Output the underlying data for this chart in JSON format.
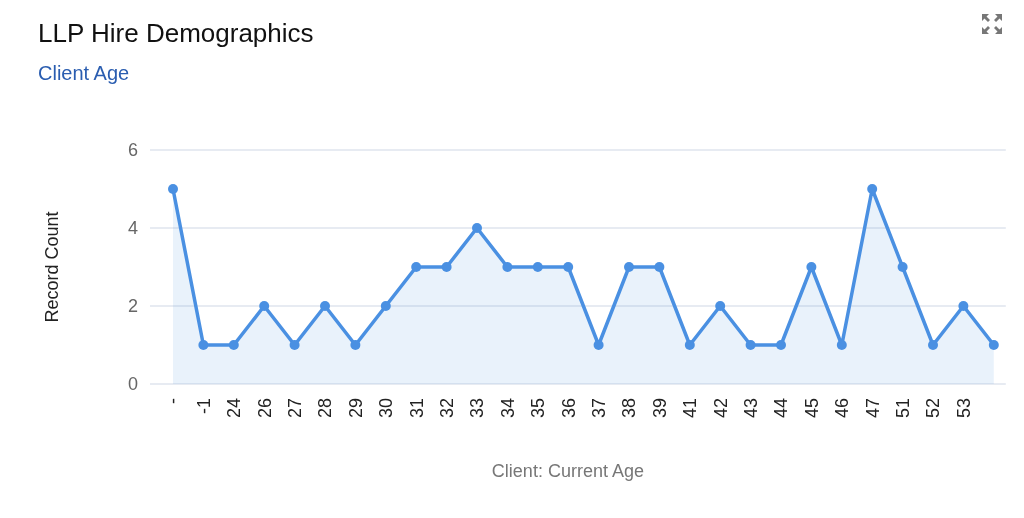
{
  "chart_data": {
    "type": "area",
    "title": "LLP Hire Demographics",
    "subtitle": "Client Age",
    "xlabel": "Client: Current Age",
    "ylabel": "Record Count",
    "categories": [
      "-",
      "-1",
      "24",
      "26",
      "27",
      "28",
      "29",
      "30",
      "31",
      "32",
      "33",
      "34",
      "35",
      "36",
      "37",
      "38",
      "39",
      "41",
      "42",
      "43",
      "44",
      "45",
      "46",
      "47",
      "51",
      "52",
      "53",
      null
    ],
    "series": [
      {
        "color": "#4a90e2",
        "values": [
          5,
          1,
          1,
          2,
          1,
          2,
          1,
          2,
          3,
          3,
          4,
          3,
          3,
          3,
          1,
          3,
          3,
          1,
          2,
          1,
          1,
          3,
          1,
          5,
          3,
          1,
          2,
          1
        ]
      }
    ],
    "ylim": [
      0,
      6
    ],
    "yticks": [
      0,
      2,
      4,
      6
    ],
    "grid": "y",
    "marker": "circle",
    "line_style": "solid"
  }
}
